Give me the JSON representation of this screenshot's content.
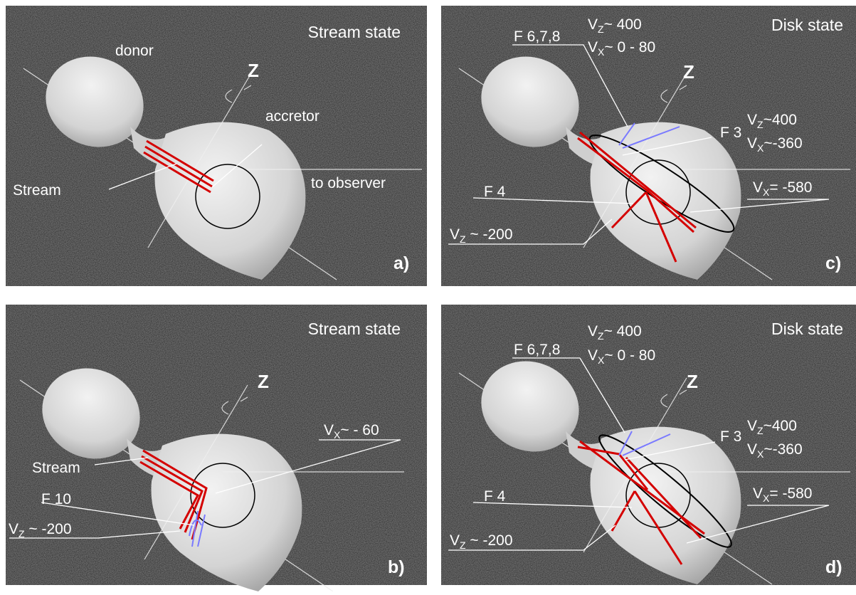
{
  "panels": [
    {
      "state": "Stream state",
      "letter": "a)",
      "labels": {
        "donor": "donor",
        "z": "Z",
        "accretor": "accretor",
        "observer": "to observer",
        "stream": "Stream"
      }
    },
    {
      "state": "Disk state",
      "letter": "c)",
      "labels": {
        "f678": "F 6,7,8",
        "z": "Z",
        "f3": "F 3",
        "f4": "F 4"
      },
      "velocities": [
        {
          "v": "V",
          "sub": "Z",
          "text": "~ 400"
        },
        {
          "v": "V",
          "sub": "X",
          "text": "~ 0 - 80"
        },
        {
          "v": "V",
          "sub": "Z",
          "text": "~400"
        },
        {
          "v": "V",
          "sub": "X",
          "text": "~-360"
        },
        {
          "v": "V",
          "sub": "X",
          "text": "= -580"
        },
        {
          "v": "V",
          "sub": "Z",
          "text": " ~ -200"
        }
      ]
    },
    {
      "state": "Stream state",
      "letter": "b)",
      "labels": {
        "z": "Z",
        "stream": "Stream",
        "f10": "F 10"
      },
      "velocities": [
        {
          "v": "V",
          "sub": "X",
          "text": "~ - 60"
        },
        {
          "v": "V",
          "sub": "Z",
          "text": " ~ -200"
        }
      ]
    },
    {
      "state": "Disk state",
      "letter": "d)",
      "labels": {
        "f678": "F 6,7,8",
        "z": "Z",
        "f3": "F 3",
        "f4": "F 4"
      },
      "velocities": [
        {
          "v": "V",
          "sub": "Z",
          "text": "~ 400"
        },
        {
          "v": "V",
          "sub": "X",
          "text": "~ 0 - 80"
        },
        {
          "v": "V",
          "sub": "Z",
          "text": "~400"
        },
        {
          "v": "V",
          "sub": "X",
          "text": "~-360"
        },
        {
          "v": "V",
          "sub": "X",
          "text": "= -580"
        },
        {
          "v": "V",
          "sub": "Z",
          "text": " ~ -200"
        }
      ]
    }
  ]
}
